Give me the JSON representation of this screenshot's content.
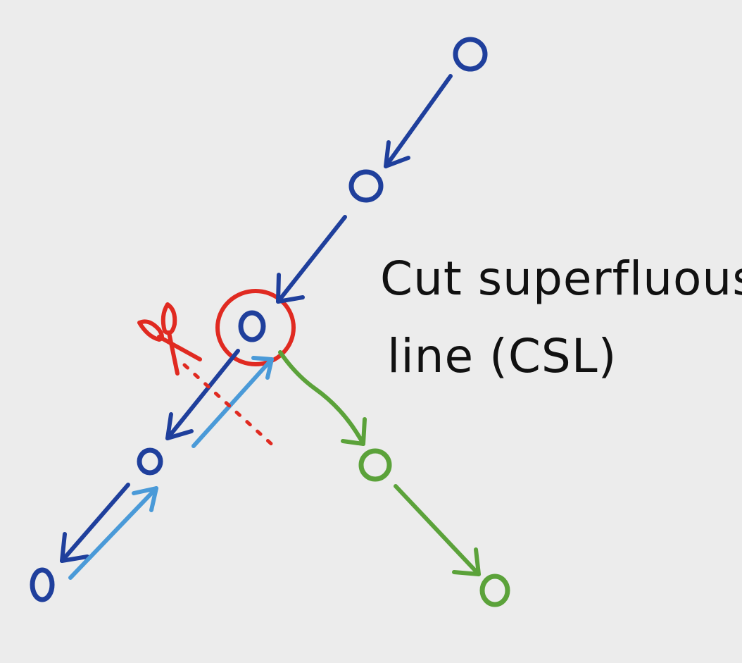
{
  "diagram": {
    "annotation": {
      "line1": "Cut superfluous",
      "line2": "line (CSL)"
    },
    "colors": {
      "background": "#ececec",
      "main_path": "#1f3f9c",
      "return_path": "#4a9ad8",
      "new_branch": "#5ba23a",
      "cut": "#e02a21",
      "text": "#111111"
    },
    "nodes": [
      {
        "id": "n1",
        "branch": "main"
      },
      {
        "id": "n2",
        "branch": "main"
      },
      {
        "id": "n3",
        "branch": "main",
        "highlighted": true
      },
      {
        "id": "n4",
        "branch": "main"
      },
      {
        "id": "n5",
        "branch": "main"
      },
      {
        "id": "g1",
        "branch": "new"
      },
      {
        "id": "g2",
        "branch": "new"
      }
    ],
    "edges": [
      {
        "from": "n1",
        "to": "n2",
        "kind": "forward"
      },
      {
        "from": "n2",
        "to": "n3",
        "kind": "forward"
      },
      {
        "from": "n3",
        "to": "n4",
        "kind": "forward"
      },
      {
        "from": "n4",
        "to": "n5",
        "kind": "forward"
      },
      {
        "from": "n5",
        "to": "n4",
        "kind": "return"
      },
      {
        "from": "n4",
        "to": "n3",
        "kind": "return"
      },
      {
        "from": "n3",
        "to": "g1",
        "kind": "new-branch"
      },
      {
        "from": "g1",
        "to": "g2",
        "kind": "new-branch"
      }
    ],
    "icons": [
      "scissors-icon"
    ]
  }
}
